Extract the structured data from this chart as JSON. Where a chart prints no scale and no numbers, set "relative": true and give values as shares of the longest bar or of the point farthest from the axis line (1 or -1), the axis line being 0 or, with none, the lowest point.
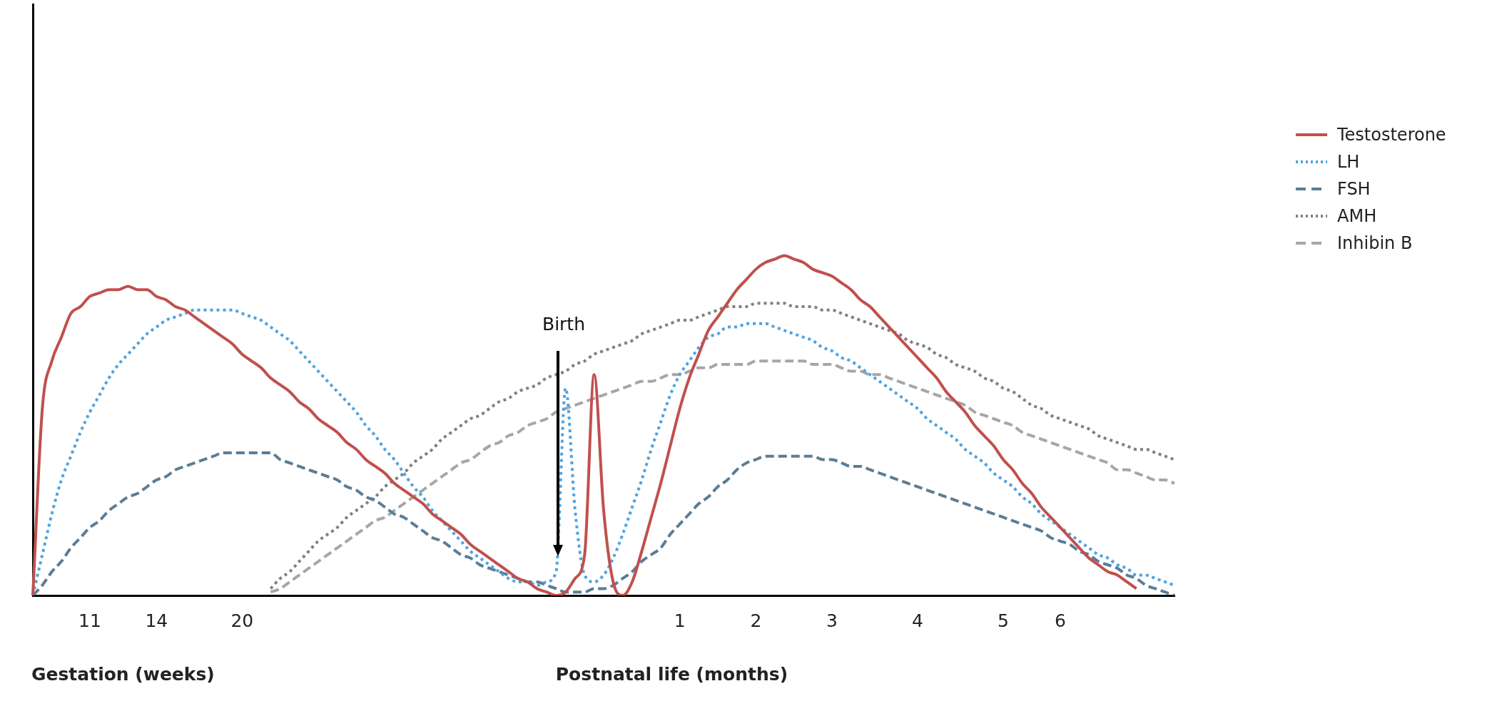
{
  "chart_data": {
    "type": "line",
    "relative": true,
    "categories": [
      null,
      null,
      null,
      null,
      null,
      null,
      "11",
      null,
      null,
      null,
      null,
      null,
      null,
      "14",
      null,
      null,
      null,
      null,
      null,
      null,
      null,
      null,
      "20",
      null,
      null,
      null,
      null,
      null,
      null,
      null,
      null,
      null,
      null,
      null,
      null,
      null,
      null,
      null,
      null,
      null,
      null,
      null,
      null,
      null,
      null,
      null,
      null,
      null,
      null,
      null,
      null,
      null,
      null,
      null,
      null,
      null,
      null,
      null,
      null,
      null,
      null,
      null,
      null,
      null,
      null,
      null,
      null,
      null,
      "1",
      null,
      null,
      null,
      null,
      null,
      null,
      null,
      "2",
      null,
      null,
      null,
      null,
      null,
      null,
      null,
      "3",
      null,
      null,
      null,
      null,
      null,
      null,
      null,
      null,
      "4",
      null,
      null,
      null,
      null,
      null,
      null,
      null,
      null,
      "5",
      null,
      null,
      null,
      null,
      null,
      "6",
      null,
      null,
      null,
      null,
      null,
      null,
      null,
      null,
      null,
      null,
      null,
      null
    ],
    "grid": false,
    "legend": "right",
    "marker": "none",
    "annotations": [
      "Birth",
      "Gestation (weeks)",
      "Postnatal life (months)"
    ],
    "series": [
      {
        "name": "Testosterone",
        "color": "#c0504d",
        "line_style": "solid",
        "values": [
          0,
          0.55,
          0.69,
          0.76,
          0.83,
          0.85,
          0.88,
          0.89,
          0.9,
          0.9,
          0.91,
          0.9,
          0.9,
          0.88,
          0.87,
          0.85,
          0.84,
          0.82,
          0.8,
          0.78,
          0.76,
          0.74,
          0.71,
          0.69,
          0.67,
          0.64,
          0.62,
          0.6,
          0.57,
          0.55,
          0.52,
          0.5,
          0.48,
          0.45,
          0.43,
          0.4,
          0.38,
          0.36,
          0.33,
          0.31,
          0.29,
          0.27,
          0.24,
          0.22,
          0.2,
          0.18,
          0.15,
          0.13,
          0.11,
          0.09,
          0.07,
          0.05,
          0.04,
          0.02,
          0.01,
          0,
          0.01,
          0.05,
          0.12,
          0.65,
          0.25,
          0.04,
          0,
          0.04,
          0.13,
          0.23,
          0.33,
          0.44,
          0.55,
          0.64,
          0.71,
          0.78,
          0.82,
          0.86,
          0.9,
          0.93,
          0.96,
          0.98,
          0.99,
          1.0,
          0.99,
          0.98,
          0.96,
          0.95,
          0.94,
          0.92,
          0.9,
          0.87,
          0.85,
          0.82,
          0.79,
          0.76,
          0.73,
          0.7,
          0.67,
          0.64,
          0.6,
          0.57,
          0.54,
          0.5,
          0.47,
          0.44,
          0.4,
          0.37,
          0.33,
          0.3,
          0.26,
          0.23,
          0.2,
          0.17,
          0.14,
          0.11,
          0.09,
          0.07,
          0.06,
          0.04,
          0.02,
          null,
          null,
          null,
          null
        ]
      },
      {
        "name": "LH",
        "color": "#4ea3e0",
        "line_style": "dotted",
        "values": [
          0,
          0.12,
          0.24,
          0.34,
          0.41,
          0.48,
          0.54,
          0.59,
          0.64,
          0.68,
          0.71,
          0.74,
          0.77,
          0.79,
          0.81,
          0.82,
          0.83,
          0.84,
          0.84,
          0.84,
          0.84,
          0.84,
          0.83,
          0.82,
          0.81,
          0.79,
          0.77,
          0.75,
          0.72,
          0.69,
          0.66,
          0.63,
          0.6,
          0.57,
          0.54,
          0.5,
          0.47,
          0.43,
          0.4,
          0.36,
          0.32,
          0.29,
          0.25,
          0.22,
          0.19,
          0.16,
          0.13,
          0.11,
          0.09,
          0.07,
          0.05,
          0.04,
          0.04,
          0.03,
          0.04,
          0.07,
          0.61,
          0.25,
          0.06,
          0.04,
          0.06,
          0.11,
          0.18,
          0.26,
          0.34,
          0.43,
          0.51,
          0.59,
          0.65,
          0.69,
          0.73,
          0.76,
          0.77,
          0.79,
          0.79,
          0.8,
          0.8,
          0.8,
          0.79,
          0.78,
          0.77,
          0.76,
          0.75,
          0.73,
          0.72,
          0.7,
          0.69,
          0.67,
          0.65,
          0.63,
          0.61,
          0.59,
          0.57,
          0.55,
          0.52,
          0.5,
          0.48,
          0.46,
          0.43,
          0.41,
          0.39,
          0.36,
          0.34,
          0.32,
          0.29,
          0.27,
          0.24,
          0.22,
          0.2,
          0.18,
          0.16,
          0.14,
          0.12,
          0.11,
          0.09,
          0.08,
          0.06,
          0.06,
          0.05,
          0.04,
          0.03
        ]
      },
      {
        "name": "FSH",
        "color": "#5a7d96",
        "line_style": "dashed",
        "values": [
          0,
          0.03,
          0.07,
          0.1,
          0.14,
          0.17,
          0.2,
          0.22,
          0.25,
          0.27,
          0.29,
          0.3,
          0.32,
          0.34,
          0.35,
          0.37,
          0.38,
          0.39,
          0.4,
          0.41,
          0.42,
          0.42,
          0.42,
          0.42,
          0.42,
          0.42,
          0.4,
          0.39,
          0.38,
          0.37,
          0.36,
          0.35,
          0.34,
          0.32,
          0.31,
          0.29,
          0.28,
          0.26,
          0.24,
          0.23,
          0.21,
          0.19,
          0.17,
          0.16,
          0.14,
          0.12,
          0.11,
          0.09,
          0.08,
          0.07,
          0.06,
          0.05,
          0.04,
          0.04,
          0.03,
          0.02,
          0.01,
          0.01,
          0.01,
          0.02,
          0.02,
          0.03,
          0.05,
          0.07,
          0.1,
          0.12,
          0.14,
          0.18,
          0.21,
          0.24,
          0.27,
          0.29,
          0.32,
          0.34,
          0.37,
          0.39,
          0.4,
          0.41,
          0.41,
          0.41,
          0.41,
          0.41,
          0.41,
          0.4,
          0.4,
          0.39,
          0.38,
          0.38,
          0.37,
          0.36,
          0.35,
          0.34,
          0.33,
          0.32,
          0.31,
          0.3,
          0.29,
          0.28,
          0.27,
          0.26,
          0.25,
          0.24,
          0.23,
          0.22,
          0.21,
          0.2,
          0.19,
          0.17,
          0.16,
          0.15,
          0.13,
          0.12,
          0.1,
          0.09,
          0.08,
          0.06,
          0.05,
          0.03,
          0.02,
          0.01,
          0
        ]
      },
      {
        "name": "AMH",
        "color": "#808080",
        "line_style": "dotted",
        "values": [
          null,
          null,
          null,
          null,
          null,
          null,
          null,
          null,
          null,
          null,
          null,
          null,
          null,
          null,
          null,
          null,
          null,
          null,
          null,
          null,
          null,
          null,
          null,
          null,
          null,
          0.02,
          0.05,
          0.07,
          0.1,
          0.13,
          0.16,
          0.18,
          0.2,
          0.23,
          0.25,
          0.27,
          0.29,
          0.32,
          0.34,
          0.36,
          0.39,
          0.41,
          0.43,
          0.46,
          0.48,
          0.5,
          0.52,
          0.53,
          0.55,
          0.57,
          0.58,
          0.6,
          0.61,
          0.62,
          0.64,
          0.65,
          0.66,
          0.68,
          0.69,
          0.71,
          0.72,
          0.73,
          0.74,
          0.75,
          0.77,
          0.78,
          0.79,
          0.8,
          0.81,
          0.81,
          0.82,
          0.83,
          0.84,
          0.85,
          0.85,
          0.85,
          0.86,
          0.86,
          0.86,
          0.86,
          0.85,
          0.85,
          0.85,
          0.84,
          0.84,
          0.83,
          0.82,
          0.81,
          0.8,
          0.79,
          0.78,
          0.77,
          0.75,
          0.74,
          0.73,
          0.71,
          0.7,
          0.68,
          0.67,
          0.66,
          0.64,
          0.63,
          0.61,
          0.6,
          0.58,
          0.56,
          0.55,
          0.53,
          0.52,
          0.51,
          0.5,
          0.49,
          0.47,
          0.46,
          0.45,
          0.44,
          0.43,
          0.43,
          0.42,
          0.41,
          0.4
        ]
      },
      {
        "name": "Inhibin B",
        "color": "#a6a6a6",
        "line_style": "dashed",
        "values": [
          null,
          null,
          null,
          null,
          null,
          null,
          null,
          null,
          null,
          null,
          null,
          null,
          null,
          null,
          null,
          null,
          null,
          null,
          null,
          null,
          null,
          null,
          null,
          null,
          null,
          0.01,
          0.02,
          0.04,
          0.06,
          0.08,
          0.1,
          0.12,
          0.14,
          0.16,
          0.18,
          0.2,
          0.22,
          0.23,
          0.25,
          0.27,
          0.29,
          0.31,
          0.33,
          0.35,
          0.37,
          0.39,
          0.4,
          0.42,
          0.44,
          0.45,
          0.47,
          0.48,
          0.5,
          0.51,
          0.52,
          0.54,
          0.55,
          0.56,
          0.57,
          0.58,
          0.59,
          0.6,
          0.61,
          0.62,
          0.63,
          0.63,
          0.64,
          0.65,
          0.65,
          0.66,
          0.67,
          0.67,
          0.68,
          0.68,
          0.68,
          0.68,
          0.69,
          0.69,
          0.69,
          0.69,
          0.69,
          0.69,
          0.68,
          0.68,
          0.68,
          0.67,
          0.66,
          0.66,
          0.65,
          0.65,
          0.64,
          0.63,
          0.62,
          0.61,
          0.6,
          0.59,
          0.58,
          0.57,
          0.56,
          0.54,
          0.53,
          0.52,
          0.51,
          0.5,
          0.48,
          0.47,
          0.46,
          0.45,
          0.44,
          0.43,
          0.42,
          0.41,
          0.4,
          0.39,
          0.37,
          0.37,
          0.36,
          0.35,
          0.34,
          0.34,
          0.33
        ]
      }
    ]
  }
}
